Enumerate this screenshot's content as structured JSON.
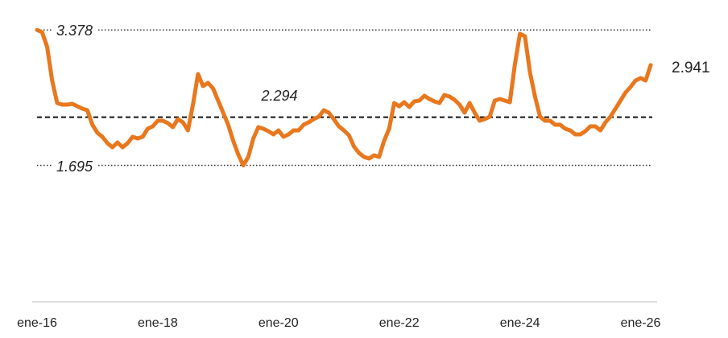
{
  "chart_data": {
    "type": "line",
    "categories": [
      "ene-16",
      null,
      null,
      null,
      null,
      null,
      null,
      null,
      null,
      null,
      null,
      null,
      null,
      null,
      null,
      null,
      null,
      null,
      null,
      null,
      null,
      null,
      null,
      null,
      "ene-18",
      null,
      null,
      null,
      null,
      null,
      null,
      null,
      null,
      null,
      null,
      null,
      null,
      null,
      null,
      null,
      null,
      null,
      null,
      null,
      null,
      null,
      null,
      null,
      "ene-20",
      null,
      null,
      null,
      null,
      null,
      null,
      null,
      null,
      null,
      null,
      null,
      null,
      null,
      null,
      null,
      null,
      null,
      null,
      null,
      null,
      null,
      null,
      null,
      "ene-22",
      null,
      null,
      null,
      null,
      null,
      null,
      null,
      null,
      null,
      null,
      null,
      null,
      null,
      null,
      null,
      null,
      null,
      null,
      null,
      null,
      null,
      null,
      null,
      "ene-24",
      null,
      null,
      null,
      null,
      null,
      null,
      null,
      null,
      null,
      null,
      null,
      null,
      null,
      null,
      null,
      null,
      null,
      null,
      null,
      null,
      null,
      null,
      null,
      "ene-26",
      null,
      null
    ],
    "values": [
      3.378,
      3.35,
      3.17,
      2.75,
      2.47,
      2.45,
      2.45,
      2.46,
      2.43,
      2.4,
      2.38,
      2.2,
      2.1,
      2.05,
      1.97,
      1.92,
      1.98,
      1.92,
      1.97,
      2.05,
      2.03,
      2.05,
      2.15,
      2.18,
      2.25,
      2.25,
      2.22,
      2.17,
      2.27,
      2.23,
      2.13,
      2.45,
      2.83,
      2.68,
      2.72,
      2.65,
      2.5,
      2.35,
      2.2,
      2.0,
      1.83,
      1.695,
      1.8,
      2.03,
      2.17,
      2.15,
      2.12,
      2.08,
      2.13,
      2.05,
      2.08,
      2.13,
      2.13,
      2.2,
      2.23,
      2.27,
      2.3,
      2.38,
      2.35,
      2.27,
      2.18,
      2.13,
      2.07,
      1.93,
      1.85,
      1.8,
      1.78,
      1.82,
      1.8,
      2.0,
      2.15,
      2.47,
      2.43,
      2.48,
      2.42,
      2.49,
      2.5,
      2.56,
      2.52,
      2.49,
      2.47,
      2.57,
      2.55,
      2.51,
      2.45,
      2.35,
      2.47,
      2.35,
      2.25,
      2.27,
      2.3,
      2.5,
      2.52,
      2.5,
      2.48,
      2.95,
      3.33,
      3.3,
      2.85,
      2.55,
      2.3,
      2.25,
      2.25,
      2.2,
      2.2,
      2.15,
      2.13,
      2.08,
      2.08,
      2.12,
      2.18,
      2.18,
      2.13,
      2.23,
      2.3,
      2.4,
      2.5,
      2.6,
      2.67,
      2.75,
      2.78,
      2.75,
      2.941
    ],
    "color": "#e8771e",
    "ylim": [
      0,
      3.75
    ],
    "reference_lines": [
      {
        "value": 3.378,
        "style": "dotted"
      },
      {
        "value": 2.294,
        "style": "dashed"
      },
      {
        "value": 1.695,
        "style": "dotted"
      }
    ]
  }
}
